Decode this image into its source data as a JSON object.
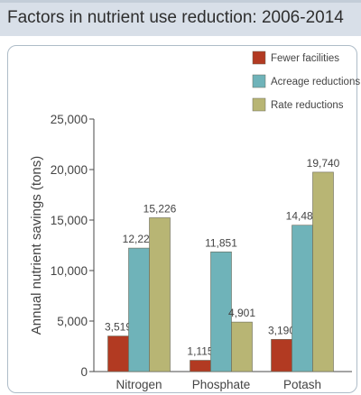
{
  "header": {
    "title": "Factors in nutrient use reduction: 2006-2014"
  },
  "colors": {
    "fewer_facilities": "#b23a22",
    "acreage_reductions": "#6fb3b9",
    "rate_reductions": "#b8b574",
    "axis": "#4a4a4a",
    "text": "#444444"
  },
  "chart_data": {
    "type": "bar",
    "title": "",
    "xlabel": "",
    "ylabel": "Annual nutrient savings (tons)",
    "ylim": [
      0,
      25000
    ],
    "yticks": [
      0,
      5000,
      10000,
      15000,
      20000,
      25000
    ],
    "ytick_labels": [
      "0",
      "5,000",
      "10,000",
      "15,000",
      "20,000",
      "25,000"
    ],
    "categories": [
      "Nitrogen",
      "Phosphate",
      "Potash"
    ],
    "legend_position": "top-right",
    "series": [
      {
        "name": "Fewer facilities",
        "values": [
          3519,
          1115,
          3190
        ],
        "labels": [
          "3,519",
          "1,115",
          "3,190"
        ],
        "color": "#b23a22"
      },
      {
        "name": "Acreage reductions",
        "values": [
          12224,
          11851,
          14489
        ],
        "labels": [
          "12,224",
          "11,851",
          "14,489"
        ],
        "color": "#6fb3b9"
      },
      {
        "name": "Rate reductions",
        "values": [
          15226,
          4901,
          19740
        ],
        "labels": [
          "15,226",
          "4,901",
          "19,740"
        ],
        "color": "#b8b574"
      }
    ]
  }
}
